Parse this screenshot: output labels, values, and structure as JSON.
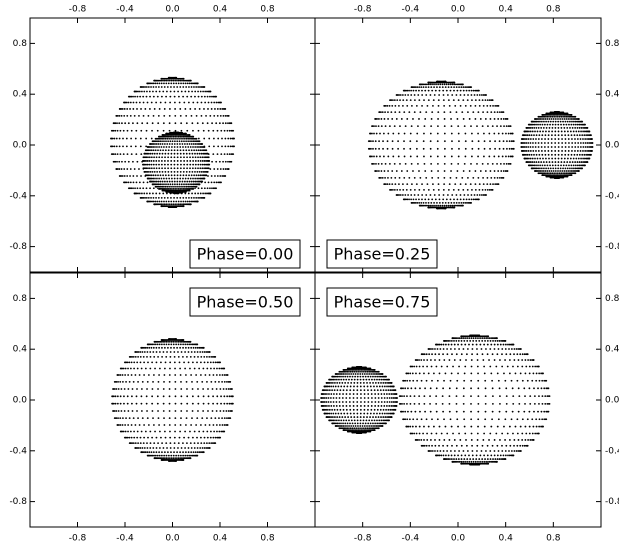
{
  "chart_data": [
    {
      "type": "bodies",
      "label": "Phase=0.00",
      "label_position": "lower right",
      "xaxis_side": "top",
      "yaxis_side": "left",
      "xlim": [
        -1.2,
        1.2
      ],
      "ylim": [
        -1.0,
        1.0
      ],
      "xticks": [
        -0.8,
        -0.4,
        {
          "value": 0,
          "label": "0.0"
        },
        0.4,
        0.8
      ],
      "yticks": [
        -0.8,
        -0.4,
        {
          "value": 0,
          "label": "0.0"
        },
        0.4,
        0.8
      ],
      "bodies": [
        {
          "cx": 0,
          "cy": 0.02,
          "rx": 0.52,
          "ry": 0.51
        },
        {
          "cx": 0.03,
          "cy": -0.14,
          "rx": 0.28,
          "ry": 0.24
        }
      ]
    },
    {
      "type": "bodies",
      "label": "Phase=0.25",
      "label_position": "lower left",
      "xaxis_side": "top",
      "yaxis_side": "right",
      "xlim": [
        -1.2,
        1.2
      ],
      "ylim": [
        -1.0,
        1.0
      ],
      "xticks": [
        -0.8,
        -0.4,
        {
          "value": 0,
          "label": "0.0"
        },
        0.4,
        0.8
      ],
      "yticks": [
        -0.8,
        -0.4,
        {
          "value": 0,
          "label": "0.0"
        },
        0.4,
        0.8
      ],
      "bodies": [
        {
          "cx": -0.14,
          "cy": 0,
          "rx": 0.61,
          "ry": 0.5
        },
        {
          "cx": 0.83,
          "cy": 0,
          "rx": 0.3,
          "ry": 0.26
        }
      ]
    },
    {
      "type": "bodies",
      "label": "Phase=0.50",
      "label_position": "upper right",
      "xaxis_side": "bottom",
      "yaxis_side": "left",
      "xlim": [
        -1.2,
        1.2
      ],
      "ylim": [
        -1.0,
        1.0
      ],
      "xticks": [
        -0.8,
        -0.4,
        {
          "value": 0,
          "label": "0.0"
        },
        0.4,
        0.8
      ],
      "yticks": [
        -0.8,
        -0.4,
        {
          "value": 0,
          "label": "0.0"
        },
        0.4,
        0.8
      ],
      "bodies": [
        {
          "cx": 0,
          "cy": 0,
          "rx": 0.51,
          "ry": 0.48
        }
      ]
    },
    {
      "type": "bodies",
      "label": "Phase=0.75",
      "label_position": "upper left",
      "xaxis_side": "bottom",
      "yaxis_side": "right",
      "xlim": [
        -1.2,
        1.2
      ],
      "ylim": [
        -1.0,
        1.0
      ],
      "xticks": [
        -0.8,
        -0.4,
        {
          "value": 0,
          "label": "0.0"
        },
        0.4,
        0.8
      ],
      "yticks": [
        -0.8,
        -0.4,
        {
          "value": 0,
          "label": "0.0"
        },
        0.4,
        0.8
      ],
      "bodies": [
        {
          "cx": 0.14,
          "cy": 0,
          "rx": 0.63,
          "ry": 0.51
        },
        {
          "cx": -0.83,
          "cy": 0,
          "rx": 0.32,
          "ry": 0.26
        }
      ]
    }
  ]
}
